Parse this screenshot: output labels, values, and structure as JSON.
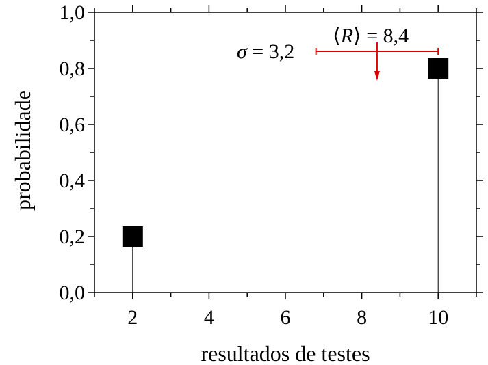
{
  "chart_data": {
    "type": "scatter",
    "xlabel": "resultados de testes",
    "ylabel": "probabilidade",
    "xlim": [
      1,
      11
    ],
    "ylim": [
      0,
      1.0
    ],
    "x_ticks": [
      "2",
      "4",
      "6",
      "8",
      "10"
    ],
    "y_ticks": [
      "0,0",
      "0,2",
      "0,4",
      "0,6",
      "0,8",
      "1,0"
    ],
    "points": [
      {
        "x": 2,
        "y": 0.2
      },
      {
        "x": 10,
        "y": 0.8
      }
    ],
    "marker": "square",
    "stems": true,
    "annotations": {
      "mean_label_left": "⟨",
      "mean_symbol": "R",
      "mean_label_right": "⟩",
      "mean_equals": " = 8,4",
      "mean_value": 8.4,
      "sigma_symbol": "σ",
      "sigma_equals": " = 3,2",
      "sigma_value": 3.2,
      "interval": [
        6.8,
        10
      ]
    },
    "colors": {
      "points": "#000000",
      "annotation": "#dd0000"
    }
  }
}
